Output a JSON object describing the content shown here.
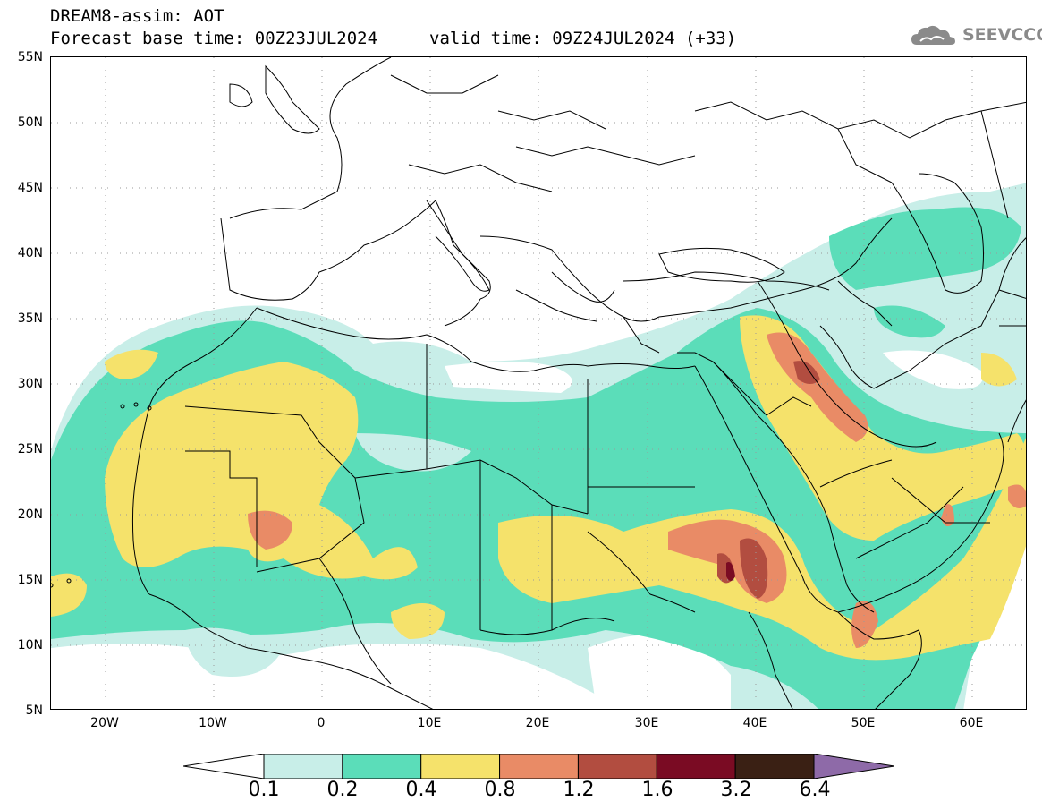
{
  "header": {
    "title_line1": "DREAM8-assim: AOT",
    "title_line2": "Forecast base time: 00Z23JUL2024",
    "valid_time": "valid time: 09Z24JUL2024 (+33)",
    "logo_text": "SEEVCCC"
  },
  "map": {
    "lat_labels": [
      "55N",
      "50N",
      "45N",
      "40N",
      "35N",
      "30N",
      "25N",
      "20N",
      "15N",
      "10N",
      "5N"
    ],
    "lon_labels": [
      "20W",
      "10W",
      "0",
      "10E",
      "20E",
      "30E",
      "40E",
      "50E",
      "60E"
    ],
    "extent": {
      "lon": [
        -25,
        65
      ],
      "lat": [
        5,
        55
      ]
    },
    "grid": "dotted"
  },
  "colorbar": {
    "labels": [
      "0.1",
      "0.2",
      "0.4",
      "0.8",
      "1.2",
      "1.6",
      "3.2",
      "6.4"
    ],
    "colors": [
      "#ffffff",
      "#c8eee8",
      "#5bddb9",
      "#f5e26b",
      "#e98b66",
      "#b24d40",
      "#7a0b23",
      "#3a2014",
      "#8e6aa8"
    ],
    "over_color": "#8e6aa8",
    "under_color": "#ffffff"
  }
}
